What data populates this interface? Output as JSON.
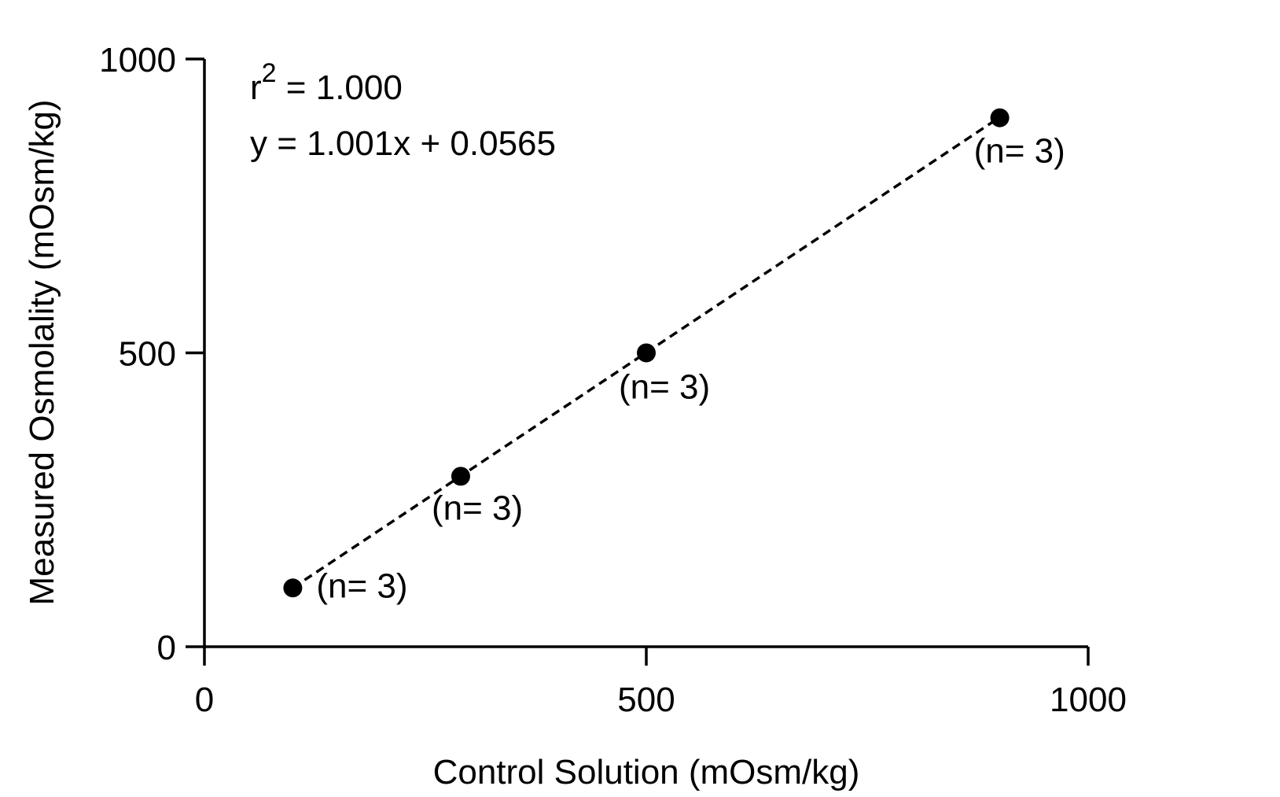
{
  "chart_data": {
    "type": "scatter",
    "title": "",
    "xlabel": "Control Solution (mOsm/kg)",
    "ylabel": "Measured Osmolality (mOsm/kg)",
    "xlim": [
      0,
      1000
    ],
    "ylim": [
      0,
      1000
    ],
    "x_ticks": [
      "0",
      "500",
      "1000"
    ],
    "y_ticks": [
      "0",
      "500",
      "1000"
    ],
    "grid": false,
    "legend": "none",
    "points": [
      {
        "x": 100,
        "y": 100,
        "label": "(n= 3)"
      },
      {
        "x": 290,
        "y": 290,
        "label": "(n= 3)"
      },
      {
        "x": 500,
        "y": 500,
        "label": "(n= 3)"
      },
      {
        "x": 900,
        "y": 900,
        "label": "(n= 3)"
      }
    ],
    "fit": {
      "slope": 1.001,
      "intercept": 0.0565,
      "style": "dashed"
    },
    "annotations": {
      "r2_base": "r",
      "r2_sup": "2",
      "r2_value": " = 1.000",
      "equation": "y = 1.001x + 0.0565"
    },
    "colors": {
      "points": "#000000",
      "line": "#000000",
      "axes": "#000000"
    }
  }
}
